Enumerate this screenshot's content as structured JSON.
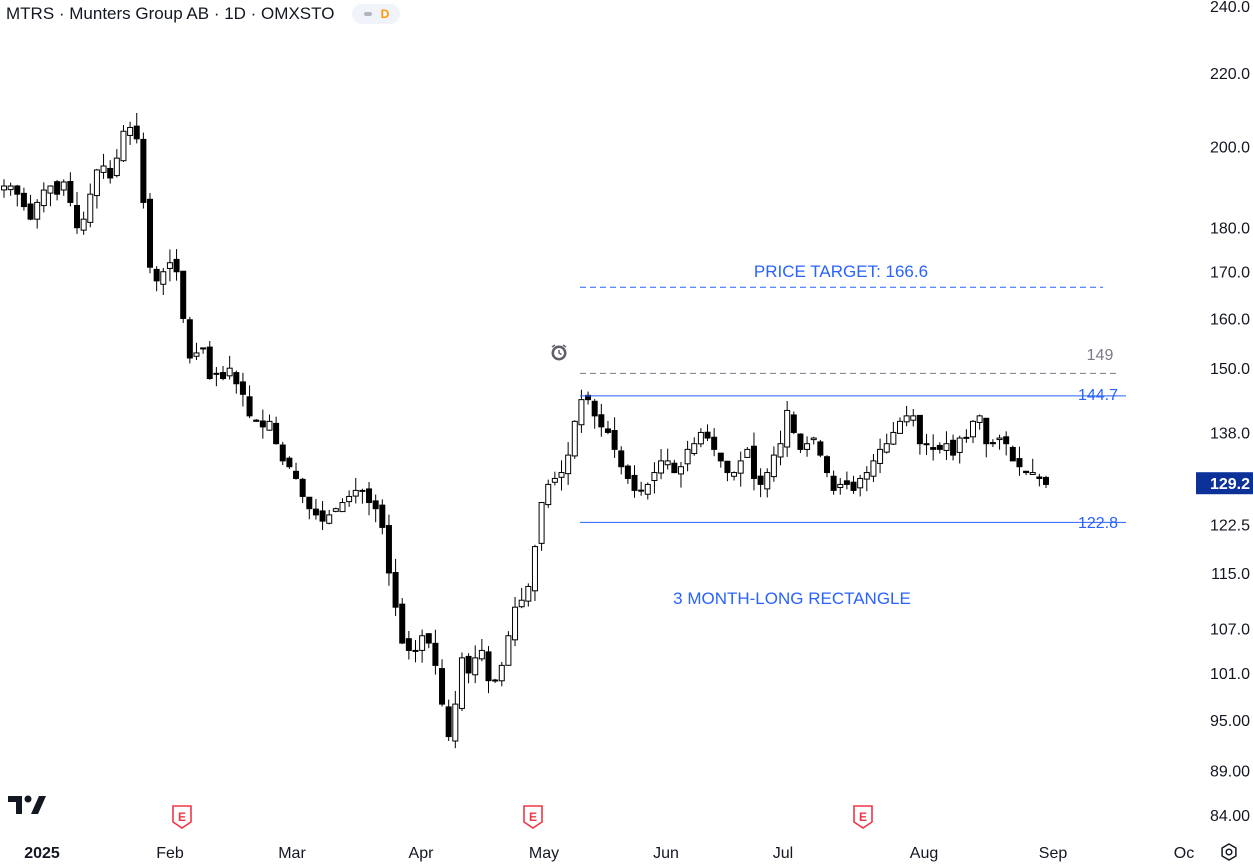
{
  "header": {
    "title": "MTRS · Munters Group AB · 1D · OMXSTO",
    "interval_badge": "D"
  },
  "colors": {
    "candle": "#000000",
    "pattern_lines": "#2962ff",
    "annotation_text": "#2962ff",
    "resistance_dashed": "#787b86",
    "last_price_bg": "#0c3299"
  },
  "chart_data": {
    "type": "candlestick",
    "symbol": "MTRS",
    "y_scale": "log",
    "ylim": [
      83,
      241
    ],
    "y_ticks": [
      "240.0",
      "220.0",
      "200.0",
      "180.0",
      "170.0",
      "160.0",
      "150.0",
      "138.0",
      "129.2",
      "122.5",
      "115.0",
      "107.0",
      "101.0",
      "95.00",
      "89.00",
      "84.00"
    ],
    "x_ticks": [
      "2025",
      "Feb",
      "Mar",
      "Apr",
      "May",
      "Jun",
      "Jul",
      "Aug",
      "Sep",
      "Oc"
    ],
    "last_price": "129.2",
    "closes_approx": [
      190,
      190,
      188,
      185,
      182,
      186,
      189,
      190,
      188,
      191,
      186,
      180,
      182,
      188,
      194,
      195,
      192,
      197,
      204,
      205,
      202,
      186,
      171,
      168,
      170,
      172,
      170,
      160,
      152,
      153,
      154,
      148,
      149,
      148,
      150,
      147,
      145,
      141,
      140,
      139,
      140,
      136,
      133,
      132,
      130,
      127,
      125,
      124,
      123,
      124,
      125,
      126,
      127,
      128,
      128,
      126,
      125,
      122,
      115,
      110,
      105,
      104,
      104,
      106,
      105,
      102,
      97,
      93,
      97,
      103,
      101,
      103,
      104,
      100,
      100,
      102,
      106,
      110,
      111,
      113,
      119,
      126,
      129,
      130,
      131,
      134,
      140,
      144,
      144,
      141,
      139,
      138,
      135,
      132,
      130,
      128,
      128,
      129,
      131,
      133,
      133,
      131,
      132,
      135,
      136,
      138,
      137,
      135,
      133,
      131,
      131,
      133,
      135,
      130,
      129,
      131,
      134,
      136,
      142,
      138,
      135,
      136,
      137,
      134,
      131,
      128,
      129,
      129,
      128,
      130,
      131,
      133,
      135,
      136,
      138,
      140,
      141,
      141,
      136,
      136,
      135,
      135,
      136,
      134,
      137,
      137,
      140,
      141,
      136,
      136,
      137,
      136,
      133,
      132,
      131,
      131,
      130,
      129
    ],
    "events": [
      "E",
      "E",
      "E"
    ],
    "annotations": {
      "price_target": "PRICE TARGET: 166.6",
      "resistance_label": "149",
      "upper_boundary_label": "144.7",
      "lower_boundary_label": "122.8",
      "pattern_label": "3 MONTH-LONG RECTANGLE"
    },
    "levels": {
      "target": 166.6,
      "resistance": 149,
      "upper": 144.7,
      "lower": 122.8
    }
  }
}
